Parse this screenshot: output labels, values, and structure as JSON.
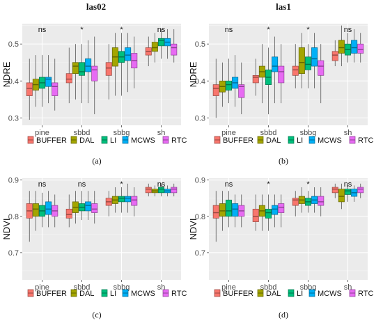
{
  "column_titles": [
    "las02",
    "las1"
  ],
  "captions": [
    "(a)",
    "(b)",
    "(c)",
    "(d)"
  ],
  "legend": {
    "labels": [
      "BUFFER",
      "DAL",
      "LI",
      "MCWS",
      "RTC"
    ],
    "colors": [
      "#f8766d",
      "#a3a500",
      "#00bf7d",
      "#00b0f6",
      "#e76bf3"
    ]
  },
  "chart_data": [
    {
      "type": "boxplot",
      "panel": "a",
      "ylabel": "NDRE",
      "ylim": [
        0.28,
        0.555
      ],
      "yticks": [
        0.3,
        0.4,
        0.5
      ],
      "categories": [
        "pine",
        "sbbd",
        "sbbg",
        "sh"
      ],
      "significance": [
        "ns",
        "*",
        "*",
        "ns"
      ],
      "grid": true,
      "legend_position": "bottom",
      "boxes": [
        [
          [
            0.295,
            0.36,
            0.38,
            0.395,
            0.46
          ],
          [
            0.33,
            0.375,
            0.39,
            0.405,
            0.47
          ],
          [
            0.33,
            0.38,
            0.395,
            0.41,
            0.47
          ],
          [
            0.34,
            0.385,
            0.405,
            0.41,
            0.47
          ],
          [
            0.32,
            0.36,
            0.385,
            0.395,
            0.46
          ]
        ],
        [
          [
            0.34,
            0.395,
            0.405,
            0.42,
            0.49
          ],
          [
            0.35,
            0.42,
            0.44,
            0.45,
            0.5
          ],
          [
            0.34,
            0.415,
            0.425,
            0.45,
            0.5
          ],
          [
            0.34,
            0.425,
            0.44,
            0.46,
            0.51
          ],
          [
            0.31,
            0.4,
            0.43,
            0.44,
            0.52
          ]
        ],
        [
          [
            0.35,
            0.415,
            0.435,
            0.45,
            0.5
          ],
          [
            0.36,
            0.44,
            0.465,
            0.49,
            0.53
          ],
          [
            0.36,
            0.45,
            0.465,
            0.48,
            0.53
          ],
          [
            0.37,
            0.455,
            0.47,
            0.49,
            0.53
          ],
          [
            0.38,
            0.435,
            0.455,
            0.475,
            0.52
          ]
        ],
        [
          [
            0.44,
            0.47,
            0.48,
            0.49,
            0.52
          ],
          [
            0.45,
            0.48,
            0.49,
            0.505,
            0.53
          ],
          [
            0.46,
            0.495,
            0.51,
            0.515,
            0.54
          ],
          [
            0.46,
            0.495,
            0.505,
            0.515,
            0.54
          ],
          [
            0.45,
            0.47,
            0.49,
            0.5,
            0.54
          ]
        ]
      ]
    },
    {
      "type": "boxplot",
      "panel": "b",
      "ylabel": "NDRE",
      "ylim": [
        0.28,
        0.555
      ],
      "yticks": [
        0.3,
        0.4,
        0.5
      ],
      "categories": [
        "pine",
        "sbbd",
        "sbbg",
        "sh"
      ],
      "significance": [
        "ns",
        "*",
        "*",
        "ns"
      ],
      "grid": true,
      "legend_position": "bottom",
      "boxes": [
        [
          [
            0.3,
            0.36,
            0.38,
            0.39,
            0.46
          ],
          [
            0.33,
            0.37,
            0.385,
            0.4,
            0.45
          ],
          [
            0.34,
            0.375,
            0.39,
            0.4,
            0.46
          ],
          [
            0.33,
            0.38,
            0.395,
            0.41,
            0.47
          ],
          [
            0.31,
            0.355,
            0.385,
            0.39,
            0.45
          ]
        ],
        [
          [
            0.36,
            0.395,
            0.41,
            0.415,
            0.46
          ],
          [
            0.34,
            0.41,
            0.425,
            0.44,
            0.5
          ],
          [
            0.31,
            0.39,
            0.41,
            0.43,
            0.49
          ],
          [
            0.34,
            0.425,
            0.44,
            0.465,
            0.52
          ],
          [
            0.34,
            0.395,
            0.425,
            0.44,
            0.5
          ]
        ],
        [
          [
            0.38,
            0.415,
            0.43,
            0.44,
            0.5
          ],
          [
            0.38,
            0.42,
            0.45,
            0.49,
            0.53
          ],
          [
            0.38,
            0.43,
            0.445,
            0.465,
            0.5
          ],
          [
            0.38,
            0.44,
            0.46,
            0.49,
            0.53
          ],
          [
            0.34,
            0.415,
            0.44,
            0.455,
            0.5
          ]
        ],
        [
          [
            0.44,
            0.455,
            0.47,
            0.48,
            0.51
          ],
          [
            0.44,
            0.475,
            0.49,
            0.51,
            0.55
          ],
          [
            0.45,
            0.47,
            0.485,
            0.5,
            0.53
          ],
          [
            0.45,
            0.475,
            0.49,
            0.51,
            0.54
          ],
          [
            0.45,
            0.475,
            0.485,
            0.5,
            0.53
          ]
        ]
      ]
    },
    {
      "type": "boxplot",
      "panel": "c",
      "ylabel": "NDVI",
      "ylim": [
        0.625,
        0.905
      ],
      "yticks": [
        0.7,
        0.8,
        0.9
      ],
      "categories": [
        "pine",
        "sbbd",
        "sbbg",
        "sh"
      ],
      "significance": [
        "ns",
        "ns",
        "*",
        "ns"
      ],
      "grid": true,
      "legend_position": "bottom",
      "boxes": [
        [
          [
            0.73,
            0.795,
            0.815,
            0.835,
            0.87
          ],
          [
            0.76,
            0.8,
            0.82,
            0.835,
            0.87
          ],
          [
            0.77,
            0.8,
            0.815,
            0.83,
            0.865
          ],
          [
            0.77,
            0.805,
            0.82,
            0.84,
            0.87
          ],
          [
            0.77,
            0.8,
            0.815,
            0.83,
            0.86
          ]
        ],
        [
          [
            0.77,
            0.795,
            0.805,
            0.82,
            0.86
          ],
          [
            0.78,
            0.81,
            0.825,
            0.84,
            0.87
          ],
          [
            0.79,
            0.815,
            0.825,
            0.835,
            0.87
          ],
          [
            0.79,
            0.815,
            0.83,
            0.84,
            0.87
          ],
          [
            0.78,
            0.81,
            0.82,
            0.835,
            0.87
          ]
        ],
        [
          [
            0.8,
            0.83,
            0.84,
            0.85,
            0.87
          ],
          [
            0.81,
            0.835,
            0.845,
            0.855,
            0.88
          ],
          [
            0.81,
            0.84,
            0.85,
            0.855,
            0.88
          ],
          [
            0.81,
            0.84,
            0.85,
            0.855,
            0.89
          ],
          [
            0.8,
            0.83,
            0.845,
            0.855,
            0.88
          ]
        ],
        [
          [
            0.855,
            0.865,
            0.875,
            0.88,
            0.89
          ],
          [
            0.855,
            0.865,
            0.87,
            0.875,
            0.885
          ],
          [
            0.855,
            0.865,
            0.875,
            0.88,
            0.89
          ],
          [
            0.855,
            0.865,
            0.87,
            0.875,
            0.885
          ],
          [
            0.855,
            0.865,
            0.875,
            0.88,
            0.89
          ]
        ]
      ]
    },
    {
      "type": "boxplot",
      "panel": "d",
      "ylabel": "NDVI",
      "ylim": [
        0.625,
        0.905
      ],
      "yticks": [
        0.7,
        0.8,
        0.9
      ],
      "categories": [
        "pine",
        "sbbd",
        "sbbg",
        "sh"
      ],
      "significance": [
        "ns",
        "*",
        "*",
        "ns"
      ],
      "grid": true,
      "legend_position": "bottom",
      "boxes": [
        [
          [
            0.73,
            0.795,
            0.81,
            0.83,
            0.87
          ],
          [
            0.76,
            0.8,
            0.815,
            0.835,
            0.87
          ],
          [
            0.77,
            0.8,
            0.815,
            0.845,
            0.87
          ],
          [
            0.77,
            0.8,
            0.82,
            0.835,
            0.86
          ],
          [
            0.77,
            0.8,
            0.815,
            0.83,
            0.86
          ]
        ],
        [
          [
            0.76,
            0.785,
            0.8,
            0.82,
            0.86
          ],
          [
            0.76,
            0.8,
            0.815,
            0.83,
            0.86
          ],
          [
            0.76,
            0.795,
            0.81,
            0.82,
            0.86
          ],
          [
            0.77,
            0.805,
            0.82,
            0.83,
            0.86
          ],
          [
            0.77,
            0.81,
            0.825,
            0.835,
            0.86
          ]
        ],
        [
          [
            0.8,
            0.83,
            0.845,
            0.85,
            0.87
          ],
          [
            0.81,
            0.835,
            0.845,
            0.855,
            0.88
          ],
          [
            0.81,
            0.83,
            0.84,
            0.85,
            0.87
          ],
          [
            0.81,
            0.835,
            0.845,
            0.855,
            0.88
          ],
          [
            0.8,
            0.83,
            0.84,
            0.855,
            0.88
          ]
        ],
        [
          [
            0.85,
            0.865,
            0.875,
            0.88,
            0.89
          ],
          [
            0.82,
            0.84,
            0.855,
            0.875,
            0.89
          ],
          [
            0.84,
            0.86,
            0.87,
            0.875,
            0.885
          ],
          [
            0.84,
            0.855,
            0.865,
            0.875,
            0.885
          ],
          [
            0.85,
            0.865,
            0.875,
            0.88,
            0.89
          ]
        ]
      ]
    }
  ]
}
